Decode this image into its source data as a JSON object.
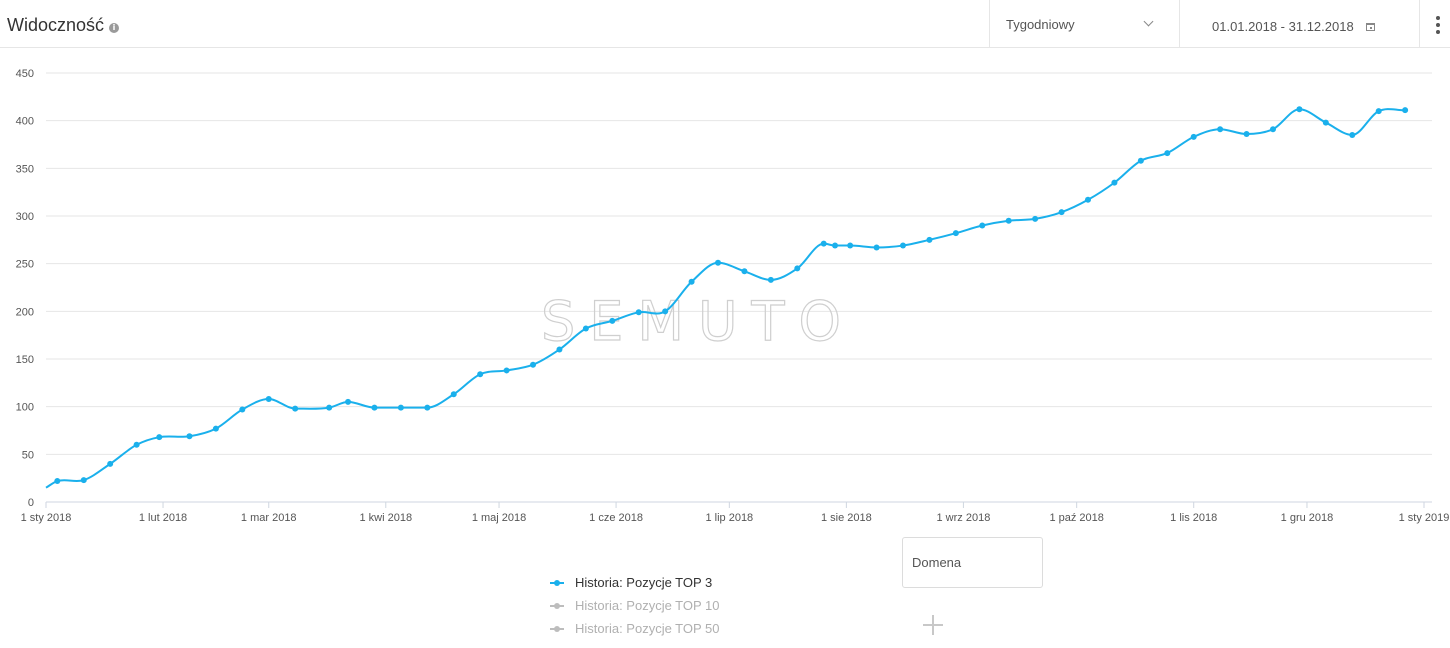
{
  "header": {
    "title": "Widoczność",
    "info_icon": "info-icon",
    "period": "Tygodniowy",
    "date_range": "01.01.2018 - 31.12.2018"
  },
  "colors": {
    "series_active": "#1ab0ec",
    "series_inactive": "#bdbdbd",
    "grid": "#e6e6e6",
    "axis_text": "#555555",
    "watermark": "#cfcfcf"
  },
  "watermark": {
    "text": "SEMUTO"
  },
  "chart_data": {
    "type": "line",
    "x_tick_labels": [
      "1 sty 2018",
      "1 lut 2018",
      "1 mar 2018",
      "1 kwi 2018",
      "1 maj 2018",
      "1 cze 2018",
      "1 lip 2018",
      "1 sie 2018",
      "1 wrz 2018",
      "1 paź 2018",
      "1 lis 2018",
      "1 gru 2018",
      "1 sty 2019"
    ],
    "y_ticks": [
      0,
      50,
      100,
      150,
      200,
      250,
      300,
      350,
      400,
      450
    ],
    "ylim": [
      0,
      450
    ],
    "xlim": [
      "2018-01-01",
      "2019-01-01"
    ],
    "grid": true,
    "legend_position": "bottom",
    "series": [
      {
        "name": "Historia: Pozycje TOP 3",
        "active": true,
        "points": [
          [
            "2018-01-01",
            15
          ],
          [
            "2018-01-04",
            22
          ],
          [
            "2018-01-11",
            23
          ],
          [
            "2018-01-18",
            40
          ],
          [
            "2018-01-25",
            60
          ],
          [
            "2018-01-31",
            68
          ],
          [
            "2018-02-08",
            69
          ],
          [
            "2018-02-15",
            77
          ],
          [
            "2018-02-22",
            97
          ],
          [
            "2018-03-01",
            108
          ],
          [
            "2018-03-08",
            98
          ],
          [
            "2018-03-17",
            99
          ],
          [
            "2018-03-22",
            105
          ],
          [
            "2018-03-29",
            99
          ],
          [
            "2018-04-05",
            99
          ],
          [
            "2018-04-12",
            99
          ],
          [
            "2018-04-19",
            113
          ],
          [
            "2018-04-26",
            134
          ],
          [
            "2018-05-03",
            138
          ],
          [
            "2018-05-10",
            144
          ],
          [
            "2018-05-17",
            160
          ],
          [
            "2018-05-24",
            182
          ],
          [
            "2018-05-31",
            190
          ],
          [
            "2018-06-07",
            199
          ],
          [
            "2018-06-14",
            200
          ],
          [
            "2018-06-21",
            231
          ],
          [
            "2018-06-28",
            251
          ],
          [
            "2018-07-05",
            242
          ],
          [
            "2018-07-12",
            233
          ],
          [
            "2018-07-19",
            245
          ],
          [
            "2018-07-26",
            271
          ],
          [
            "2018-07-29",
            269
          ],
          [
            "2018-08-02",
            269
          ],
          [
            "2018-08-09",
            267
          ],
          [
            "2018-08-16",
            269
          ],
          [
            "2018-08-23",
            275
          ],
          [
            "2018-08-30",
            282
          ],
          [
            "2018-09-06",
            290
          ],
          [
            "2018-09-13",
            295
          ],
          [
            "2018-09-20",
            297
          ],
          [
            "2018-09-27",
            304
          ],
          [
            "2018-10-04",
            317
          ],
          [
            "2018-10-11",
            335
          ],
          [
            "2018-10-18",
            358
          ],
          [
            "2018-10-25",
            366
          ],
          [
            "2018-11-01",
            383
          ],
          [
            "2018-11-08",
            391
          ],
          [
            "2018-11-15",
            386
          ],
          [
            "2018-11-22",
            391
          ],
          [
            "2018-11-29",
            412
          ],
          [
            "2018-12-06",
            398
          ],
          [
            "2018-12-13",
            385
          ],
          [
            "2018-12-20",
            410
          ],
          [
            "2018-12-27",
            411
          ]
        ]
      },
      {
        "name": "Historia: Pozycje TOP 10",
        "active": false,
        "points": []
      },
      {
        "name": "Historia: Pozycje TOP 50",
        "active": false,
        "points": []
      }
    ]
  },
  "domain_input": {
    "placeholder": "Domena",
    "value": ""
  },
  "add_icon": "plus-icon"
}
